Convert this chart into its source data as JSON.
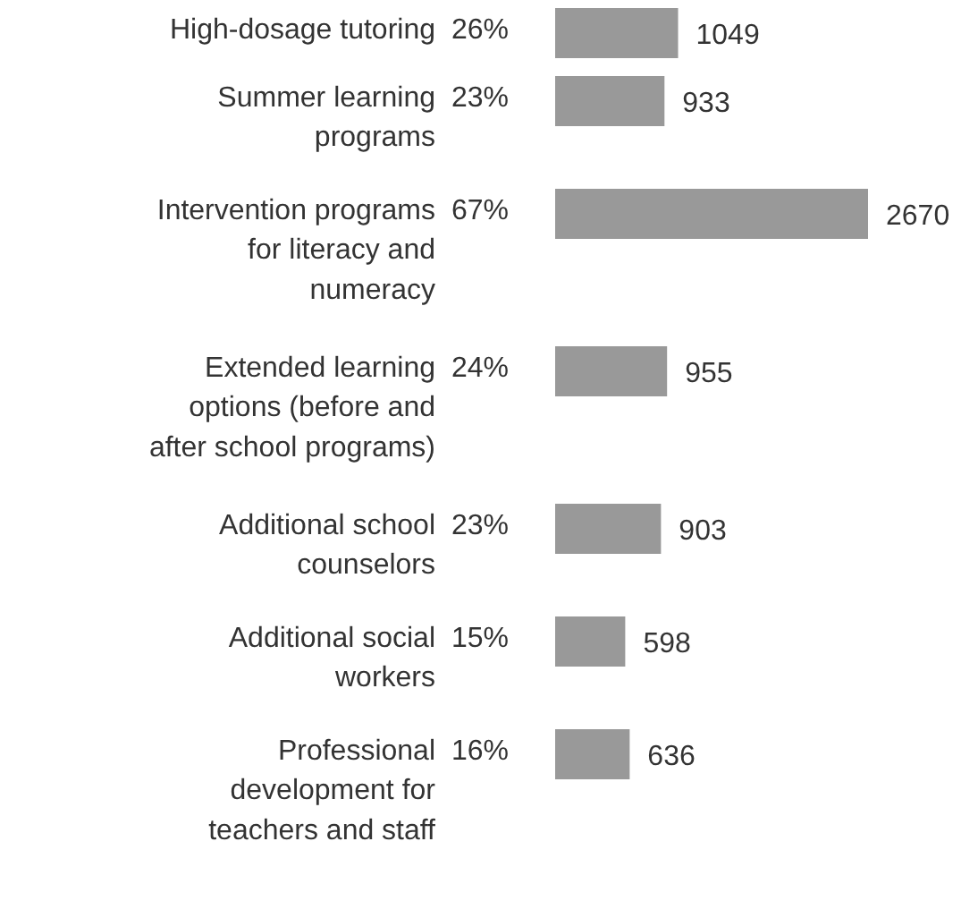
{
  "chart_data": {
    "type": "bar",
    "orientation": "horizontal",
    "categories": [
      "High-dosage tutoring",
      "Summer learning programs",
      "Intervention programs for literacy and numeracy",
      "Extended learning options (before and after school programs)",
      "Additional school counselors",
      "Additional social workers",
      "Professional development for teachers and staff"
    ],
    "values": [
      1049,
      933,
      2670,
      955,
      903,
      598,
      636
    ],
    "color": "#999999",
    "data_labels": true,
    "annotations": [
      "26%",
      "23%",
      "67%",
      "24%",
      "23%",
      "15%",
      "16%"
    ]
  }
}
